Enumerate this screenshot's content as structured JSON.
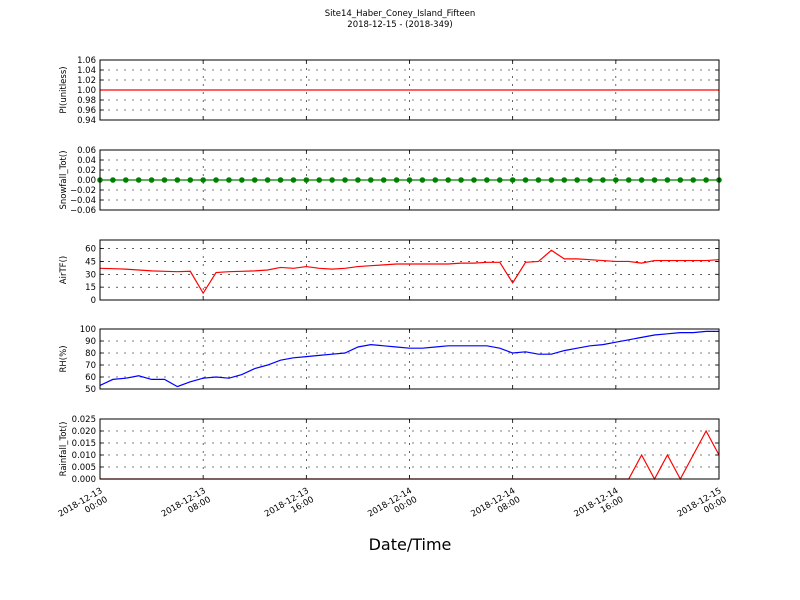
{
  "header": {
    "title": "Site14_Haber_Coney_Island_Fifteen",
    "subtitle": "2018-12-15 - (2018-349)"
  },
  "x_axis": {
    "label": "Date/Time",
    "xlim": [
      "2018-12-13 00:00",
      "2018-12-15 00:00"
    ],
    "xticks": [
      {
        "value": "2018-12-13 00:00",
        "label": [
          "2018-12-13",
          "00:00"
        ]
      },
      {
        "value": "2018-12-13 08:00",
        "label": [
          "2018-12-13",
          "08:00"
        ]
      },
      {
        "value": "2018-12-13 16:00",
        "label": [
          "2018-12-13",
          "16:00"
        ]
      },
      {
        "value": "2018-12-14 00:00",
        "label": [
          "2018-12-14",
          "00:00"
        ]
      },
      {
        "value": "2018-12-14 08:00",
        "label": [
          "2018-12-14",
          "08:00"
        ]
      },
      {
        "value": "2018-12-14 16:00",
        "label": [
          "2018-12-14",
          "16:00"
        ]
      },
      {
        "value": "2018-12-15 00:00",
        "label": [
          "2018-12-15",
          "00:00"
        ]
      }
    ],
    "x": [
      "2018-12-13 00:00",
      "2018-12-13 01:00",
      "2018-12-13 02:00",
      "2018-12-13 03:00",
      "2018-12-13 04:00",
      "2018-12-13 05:00",
      "2018-12-13 06:00",
      "2018-12-13 07:00",
      "2018-12-13 08:00",
      "2018-12-13 09:00",
      "2018-12-13 10:00",
      "2018-12-13 11:00",
      "2018-12-13 12:00",
      "2018-12-13 13:00",
      "2018-12-13 14:00",
      "2018-12-13 15:00",
      "2018-12-13 16:00",
      "2018-12-13 17:00",
      "2018-12-13 18:00",
      "2018-12-13 19:00",
      "2018-12-13 20:00",
      "2018-12-13 21:00",
      "2018-12-13 22:00",
      "2018-12-13 23:00",
      "2018-12-14 00:00",
      "2018-12-14 01:00",
      "2018-12-14 02:00",
      "2018-12-14 03:00",
      "2018-12-14 04:00",
      "2018-12-14 05:00",
      "2018-12-14 06:00",
      "2018-12-14 07:00",
      "2018-12-14 08:00",
      "2018-12-14 09:00",
      "2018-12-14 10:00",
      "2018-12-14 11:00",
      "2018-12-14 12:00",
      "2018-12-14 13:00",
      "2018-12-14 14:00",
      "2018-12-14 15:00",
      "2018-12-14 16:00",
      "2018-12-14 17:00",
      "2018-12-14 18:00",
      "2018-12-14 19:00",
      "2018-12-14 20:00",
      "2018-12-14 21:00",
      "2018-12-14 22:00",
      "2018-12-14 23:00",
      "2018-12-15 00:00"
    ]
  },
  "chart_data": [
    {
      "type": "line",
      "ylabel": "PI(unitless)",
      "ylim": [
        0.94,
        1.06
      ],
      "grid": true,
      "yticks": [
        0.94,
        0.96,
        0.98,
        {
          "value": 1,
          "label": "1.00"
        },
        1.02,
        1.04,
        1.06
      ],
      "series": [
        {
          "color": "#ff0000",
          "values": [
            1,
            1,
            1,
            1,
            1,
            1,
            1,
            1,
            1,
            1,
            1,
            1,
            1,
            1,
            1,
            1,
            1,
            1,
            1,
            1,
            1,
            1,
            1,
            1,
            1,
            1,
            1,
            1,
            1,
            1,
            1,
            1,
            1,
            1,
            1,
            1,
            1,
            1,
            1,
            1,
            1,
            1,
            1,
            1,
            1,
            1,
            1,
            1,
            1
          ]
        }
      ]
    },
    {
      "type": "line",
      "ylabel": "Snowfall_Tot()",
      "ylim": [
        -0.06,
        0.06
      ],
      "grid": true,
      "yticks": [
        {
          "value": -0.06,
          "label": "−0.06"
        },
        {
          "value": -0.04,
          "label": "−0.04"
        },
        {
          "value": -0.02,
          "label": "−0.02"
        },
        {
          "value": 0,
          "label": "0.00"
        },
        0.02,
        0.04,
        0.06
      ],
      "series": [
        {
          "color": "#008000",
          "marker": "o",
          "values": [
            0,
            0,
            0,
            0,
            0,
            0,
            0,
            0,
            0,
            0,
            0,
            0,
            0,
            0,
            0,
            0,
            0,
            0,
            0,
            0,
            0,
            0,
            0,
            0,
            0,
            0,
            0,
            0,
            0,
            0,
            0,
            0,
            0,
            0,
            0,
            0,
            0,
            0,
            0,
            0,
            0,
            0,
            0,
            0,
            0,
            0,
            0,
            0,
            0
          ]
        }
      ]
    },
    {
      "type": "line",
      "ylabel": "AirTF()",
      "ylim": [
        0,
        70
      ],
      "grid": true,
      "yticks": [
        0,
        15,
        30,
        45,
        60
      ],
      "series": [
        {
          "color": "#ff0000",
          "values": [
            37,
            36.5,
            36,
            35,
            34,
            33.5,
            33,
            33.5,
            8,
            32,
            33,
            33.5,
            34,
            35,
            38,
            37,
            39,
            37,
            36,
            37,
            39,
            40,
            41,
            42,
            42,
            42,
            42,
            42,
            43,
            43,
            44,
            44,
            20,
            44,
            45,
            58,
            48,
            48,
            47,
            46,
            45,
            45,
            43,
            46,
            46,
            46,
            46,
            46,
            47
          ]
        }
      ]
    },
    {
      "type": "line",
      "ylabel": "RH(%)",
      "ylim": [
        50,
        100
      ],
      "grid": true,
      "yticks": [
        50,
        60,
        70,
        80,
        90,
        100
      ],
      "series": [
        {
          "color": "#0000ff",
          "values": [
            53,
            58,
            59,
            61,
            58,
            58,
            52,
            56,
            59,
            60,
            59,
            62,
            67,
            70,
            74,
            76,
            77,
            78,
            79,
            80,
            85,
            87,
            86,
            85,
            84,
            84,
            85,
            86,
            86,
            86,
            86,
            84,
            80,
            81,
            79,
            79,
            82,
            84,
            86,
            87,
            89,
            91,
            93,
            95,
            96,
            97,
            97,
            98,
            98
          ]
        }
      ]
    },
    {
      "type": "line",
      "ylabel": "Rainfall_Tot()",
      "ylim": [
        0,
        0.025
      ],
      "grid": true,
      "yticks": [
        {
          "value": 0,
          "label": "0.000"
        },
        0.005,
        {
          "value": 0.01,
          "label": "0.010"
        },
        0.015,
        {
          "value": 0.02,
          "label": "0.020"
        },
        0.025
      ],
      "series": [
        {
          "color": "#ff0000",
          "values": [
            0,
            0,
            0,
            0,
            0,
            0,
            0,
            0,
            0,
            0,
            0,
            0,
            0,
            0,
            0,
            0,
            0,
            0,
            0,
            0,
            0,
            0,
            0,
            0,
            0,
            0,
            0,
            0,
            0,
            0,
            0,
            0,
            0,
            0,
            0,
            0,
            0,
            0,
            0,
            0,
            0,
            0,
            0.01,
            0,
            0.01,
            0,
            0.01,
            0.02,
            0.01
          ]
        }
      ]
    }
  ]
}
